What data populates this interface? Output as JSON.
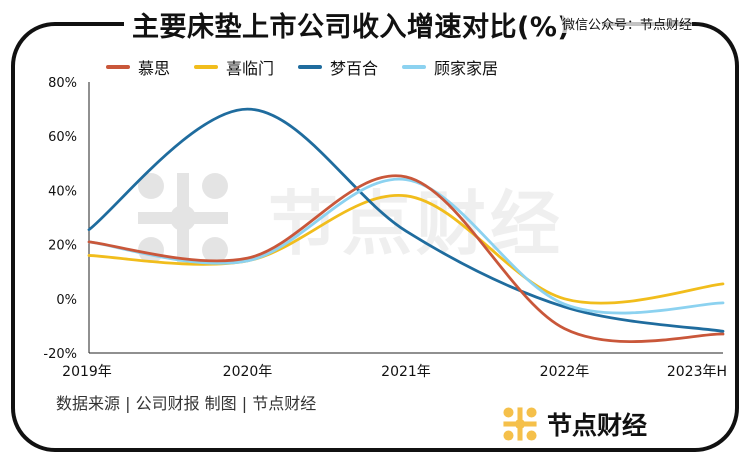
{
  "header": {
    "title": "主要床垫上市公司收入增速对比(%)",
    "wechat_label": "微信公众号：节点财经"
  },
  "footer": {
    "source": "数据来源 | 公司财报   制图 | 节点财经",
    "brand": "节点财经"
  },
  "watermark": {
    "text": "节点财经"
  },
  "colors": {
    "brand_gold": "#F5C04A",
    "axis": "#222222"
  },
  "chart_data": {
    "type": "line",
    "smooth": true,
    "title": "主要床垫上市公司收入增速对比(%)",
    "categories": [
      "2019年",
      "2020年",
      "2021年",
      "2022年",
      "2023年H"
    ],
    "ylim": [
      -20,
      80
    ],
    "yticks": [
      -20,
      0,
      20,
      40,
      60,
      80
    ],
    "ytick_labels": [
      "-20%",
      "0%",
      "20%",
      "40%",
      "60%",
      "80%"
    ],
    "grid": false,
    "legend_position": "top-left",
    "series": [
      {
        "name": "慕思",
        "color": "#C9573A",
        "values": [
          21,
          15,
          45,
          -11,
          -13
        ]
      },
      {
        "name": "喜临门",
        "color": "#F1BD1C",
        "values": [
          16,
          14,
          38,
          0,
          5.5
        ]
      },
      {
        "name": "梦百合",
        "color": "#1F6C9E",
        "values": [
          25.5,
          70,
          25,
          -3,
          -12
        ]
      },
      {
        "name": "顾家家居",
        "color": "#8CD2F0",
        "values": [
          21,
          14,
          44,
          -2,
          -1.5
        ]
      }
    ]
  }
}
